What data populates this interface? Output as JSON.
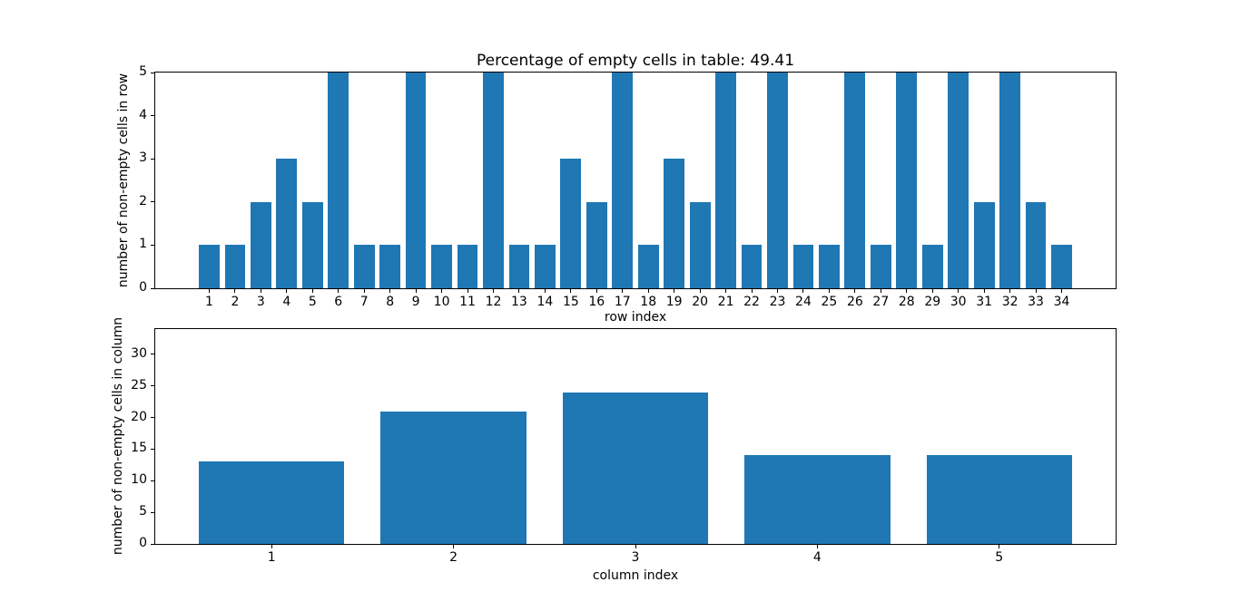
{
  "figure": {
    "background": "#ffffff"
  },
  "style": {
    "bar_color": "#1f77b4",
    "axis_color": "#000000",
    "text_color": "#000000"
  },
  "chart_data": [
    {
      "type": "bar",
      "title": "Percentage of empty cells in table: 49.41",
      "xlabel": "row index",
      "ylabel": "number of non-empty cells in row",
      "categories": [
        1,
        2,
        3,
        4,
        5,
        6,
        7,
        8,
        9,
        10,
        11,
        12,
        13,
        14,
        15,
        16,
        17,
        18,
        19,
        20,
        21,
        22,
        23,
        24,
        25,
        26,
        27,
        28,
        29,
        30,
        31,
        32,
        33,
        34
      ],
      "values": [
        1,
        1,
        2,
        3,
        2,
        5,
        1,
        1,
        5,
        1,
        1,
        5,
        1,
        1,
        3,
        2,
        5,
        1,
        3,
        2,
        5,
        1,
        5,
        1,
        1,
        5,
        1,
        5,
        1,
        5,
        2,
        5,
        2,
        1
      ],
      "xlim": [
        -1.09,
        36.09
      ],
      "ylim": [
        0,
        5
      ],
      "yticks": [
        0,
        1,
        2,
        3,
        4,
        5
      ],
      "bar_width": 0.8,
      "grid": false,
      "legend": false
    },
    {
      "type": "bar",
      "title": "",
      "xlabel": "column index",
      "ylabel": "number of non-empty cells in column",
      "categories": [
        1,
        2,
        3,
        4,
        5
      ],
      "values": [
        13,
        21,
        24,
        14,
        14
      ],
      "xlim": [
        0.36,
        5.64
      ],
      "ylim": [
        0,
        34
      ],
      "yticks": [
        0,
        5,
        10,
        15,
        20,
        25,
        30
      ],
      "bar_width": 0.8,
      "grid": false,
      "legend": false
    }
  ]
}
